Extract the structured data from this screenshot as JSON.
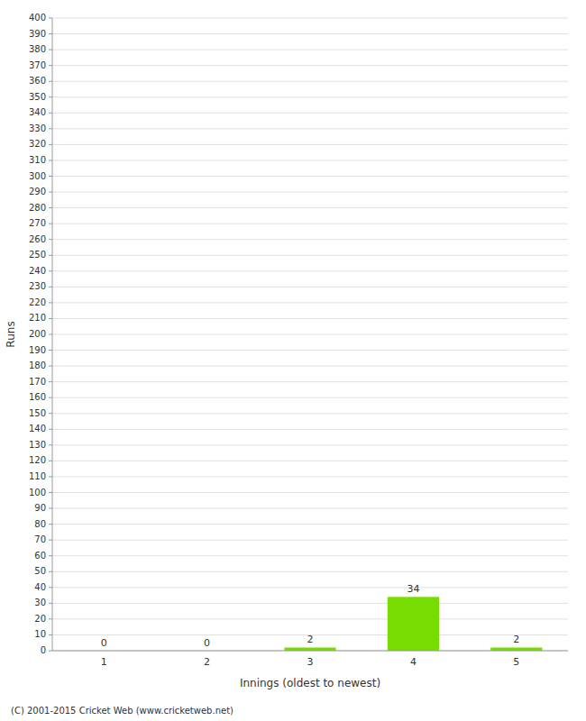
{
  "chart_data": {
    "type": "bar",
    "categories": [
      "1",
      "2",
      "3",
      "4",
      "5"
    ],
    "values": [
      0,
      0,
      2,
      34,
      2
    ],
    "color": "#77dd00",
    "xlabel": "Innings (oldest to newest)",
    "ylabel": "Runs",
    "ylim": [
      0,
      400
    ],
    "yticks": [
      0,
      10,
      20,
      30,
      40,
      50,
      60,
      70,
      80,
      90,
      100,
      110,
      120,
      130,
      140,
      150,
      160,
      170,
      180,
      190,
      200,
      210,
      220,
      230,
      240,
      250,
      260,
      270,
      280,
      290,
      300,
      310,
      320,
      330,
      340,
      350,
      360,
      370,
      380,
      390,
      400
    ],
    "grid": true,
    "data_labels": true,
    "annotations": [
      "(C) 2001-2015 Cricket Web (www.cricketweb.net)"
    ]
  }
}
